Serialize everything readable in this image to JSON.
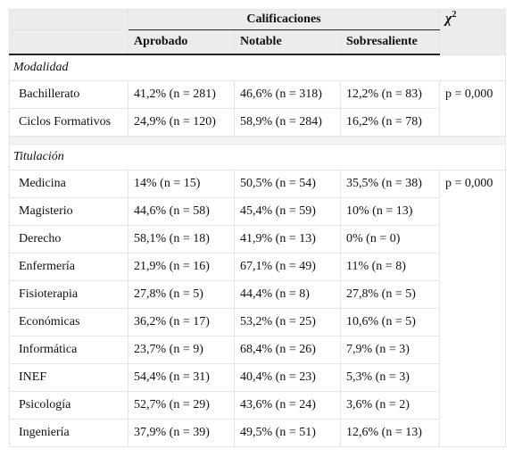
{
  "header": {
    "group": "Calificaciones",
    "chi": {
      "symbol": "χ",
      "exponent": "2"
    },
    "columns": [
      "Aprobado",
      "Notable",
      "Sobresaliente"
    ]
  },
  "sections": [
    {
      "title": "Modalidad",
      "p": "p = 0,000",
      "rows": [
        [
          "Bachillerato",
          "41,2% (n = 281)",
          "46,6% (n = 318)",
          "12,2% (n = 83)"
        ],
        [
          "Ciclos Formativos",
          "24,9% (n = 120)",
          "58,9% (n = 284)",
          "16,2% (n = 78)"
        ]
      ]
    },
    {
      "title": "Titulación",
      "p": "p = 0,000",
      "rows": [
        [
          "Medicina",
          "14% (n = 15)",
          "50,5% (n = 54)",
          "35,5% (n = 38)"
        ],
        [
          "Magisterio",
          "44,6% (n = 58)",
          "45,4% (n = 59)",
          "10% (n = 13)"
        ],
        [
          "Derecho",
          "58,1% (n = 18)",
          "41,9% (n = 13)",
          "0% (n = 0)"
        ],
        [
          "Enfermería",
          "21,9% (n = 16)",
          "67,1% (n = 49)",
          "11% (n = 8)"
        ],
        [
          "Fisioterapia",
          "27,8% (n = 5)",
          "44,4% (n = 8)",
          "27,8% (n = 5)"
        ],
        [
          "Económicas",
          "36,2% (n = 17)",
          "53,2% (n = 25)",
          "10,6% (n = 5)"
        ],
        [
          "Informática",
          "23,7% (n = 9)",
          "68,4% (n = 26)",
          "7,9% (n = 3)"
        ],
        [
          "INEF",
          "54,4% (n = 31)",
          "40,4% (n = 23)",
          "5,3% (n = 3)"
        ],
        [
          "Psicología",
          "52,7% (n = 29)",
          "43,6% (n = 24)",
          "3,6% (n = 2)"
        ],
        [
          "Ingeniería",
          "37,9% (n = 39)",
          "49,5% (n = 51)",
          "12,6% (n = 13)"
        ]
      ]
    }
  ]
}
